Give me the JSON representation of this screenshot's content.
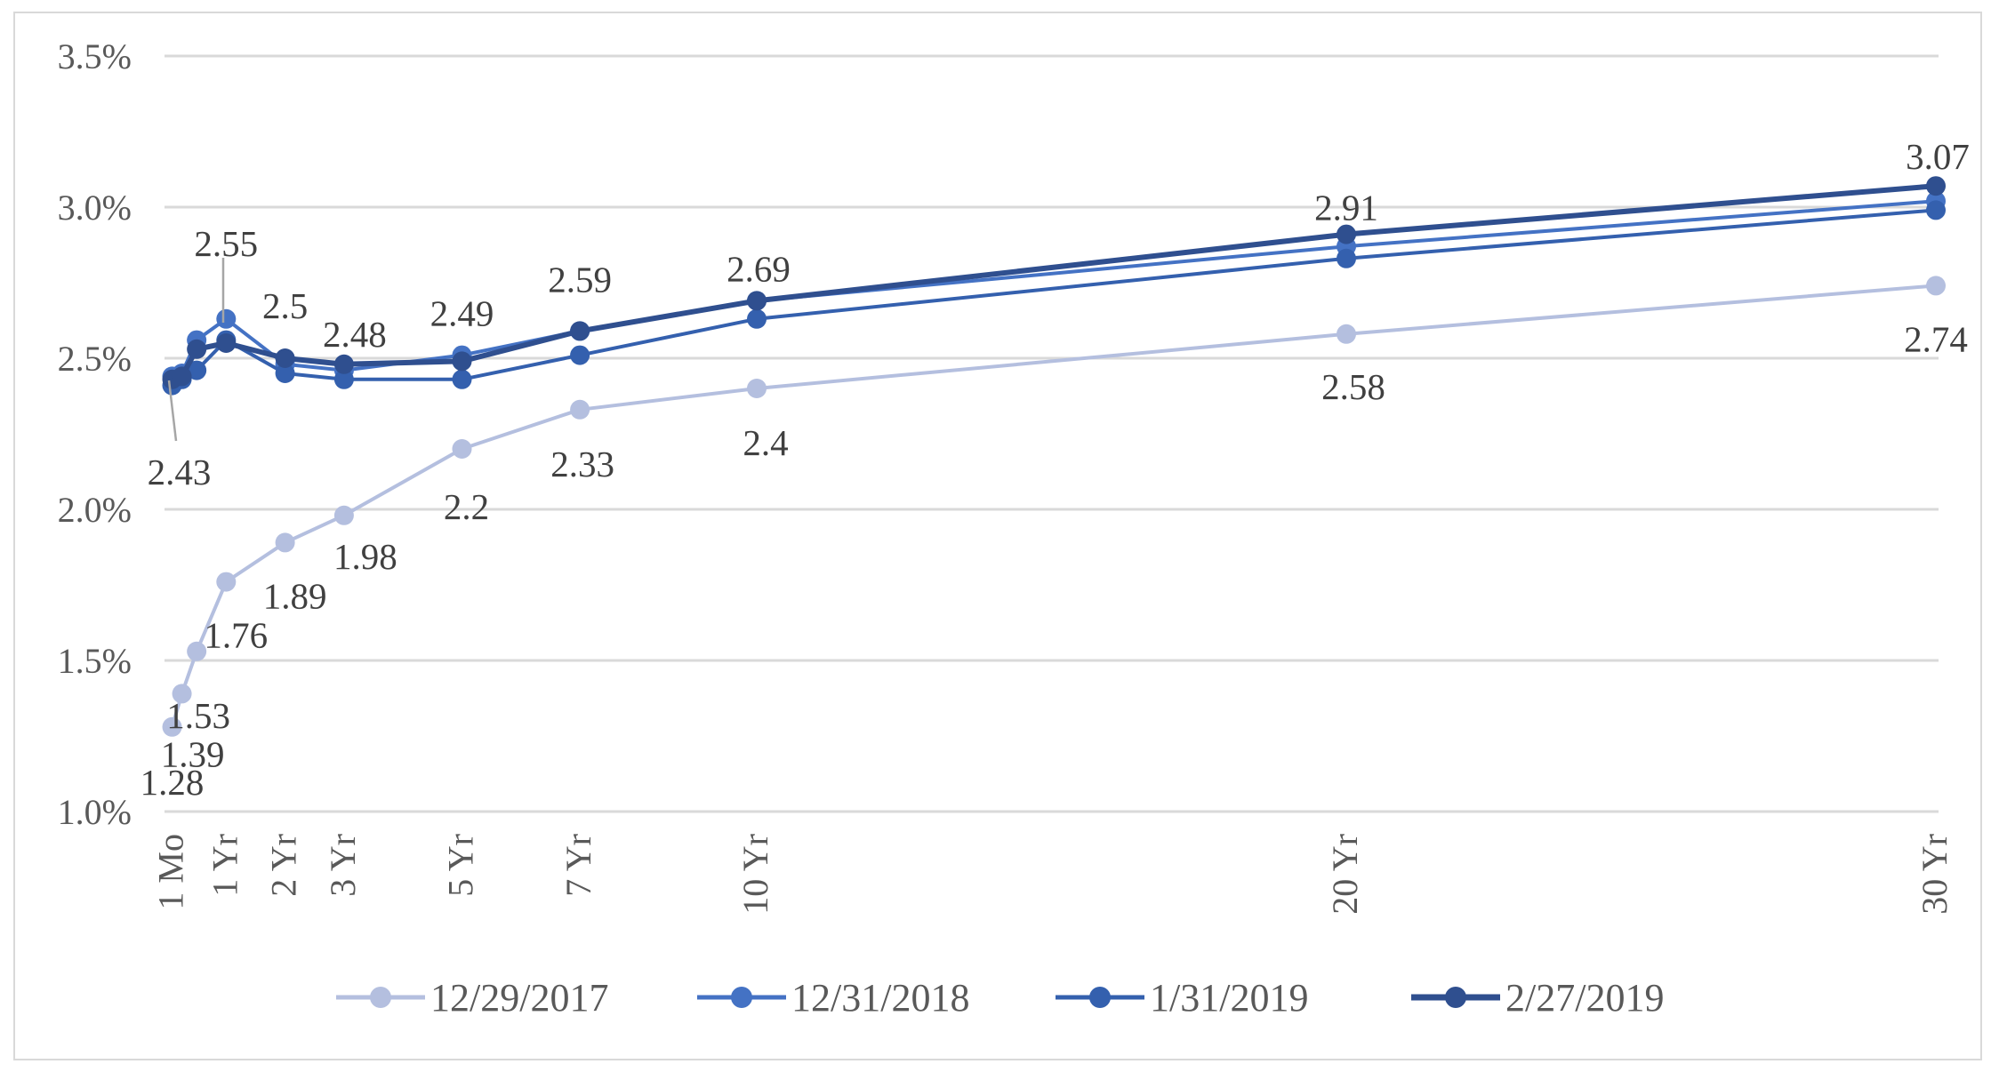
{
  "chart_data": {
    "type": "line",
    "title": "",
    "xlabel": "",
    "ylabel": "",
    "x_categories": [
      "1 Mo",
      "1 Yr",
      "2 Yr",
      "3 Yr",
      "5 Yr",
      "7 Yr",
      "10 Yr",
      "20 Yr",
      "30 Yr"
    ],
    "x_years": [
      0.0833,
      0.25,
      0.5,
      1,
      2,
      3,
      5,
      7,
      10,
      20,
      30
    ],
    "ylim": [
      1.0,
      3.5
    ],
    "yticks": [
      "1.0%",
      "1.5%",
      "2.0%",
      "2.5%",
      "3.0%",
      "3.5%"
    ],
    "ytick_values": [
      1.0,
      1.5,
      2.0,
      2.5,
      3.0,
      3.5
    ],
    "grid": true,
    "legend_position": "bottom",
    "series": [
      {
        "name": "12/29/2017",
        "color": "#b4bfdf",
        "values": [
          1.28,
          1.39,
          1.53,
          1.76,
          1.89,
          1.98,
          2.2,
          2.33,
          2.4,
          2.58,
          2.74
        ],
        "labels": [
          "1.28",
          "1.39",
          "1.53",
          "1.76",
          "1.89",
          "1.98",
          "2.2",
          "2.33",
          "2.4",
          "2.58",
          "2.74"
        ]
      },
      {
        "name": "12/31/2018",
        "color": "#4472c4",
        "values": [
          2.44,
          2.45,
          2.56,
          2.63,
          2.48,
          2.46,
          2.51,
          2.59,
          2.69,
          2.87,
          3.02
        ],
        "labels": []
      },
      {
        "name": "1/31/2019",
        "color": "#3460ae",
        "values": [
          2.41,
          2.43,
          2.46,
          2.56,
          2.45,
          2.43,
          2.43,
          2.51,
          2.63,
          2.83,
          2.99
        ],
        "labels": []
      },
      {
        "name": "2/27/2019",
        "color": "#2f4f8f",
        "values": [
          2.43,
          2.44,
          2.53,
          2.55,
          2.5,
          2.48,
          2.49,
          2.59,
          2.69,
          2.91,
          3.07
        ],
        "labels": [
          "2.43",
          "",
          "",
          "2.55",
          "2.5",
          "2.48",
          "2.49",
          "2.59",
          "2.69",
          "2.91",
          "3.07"
        ]
      }
    ]
  }
}
